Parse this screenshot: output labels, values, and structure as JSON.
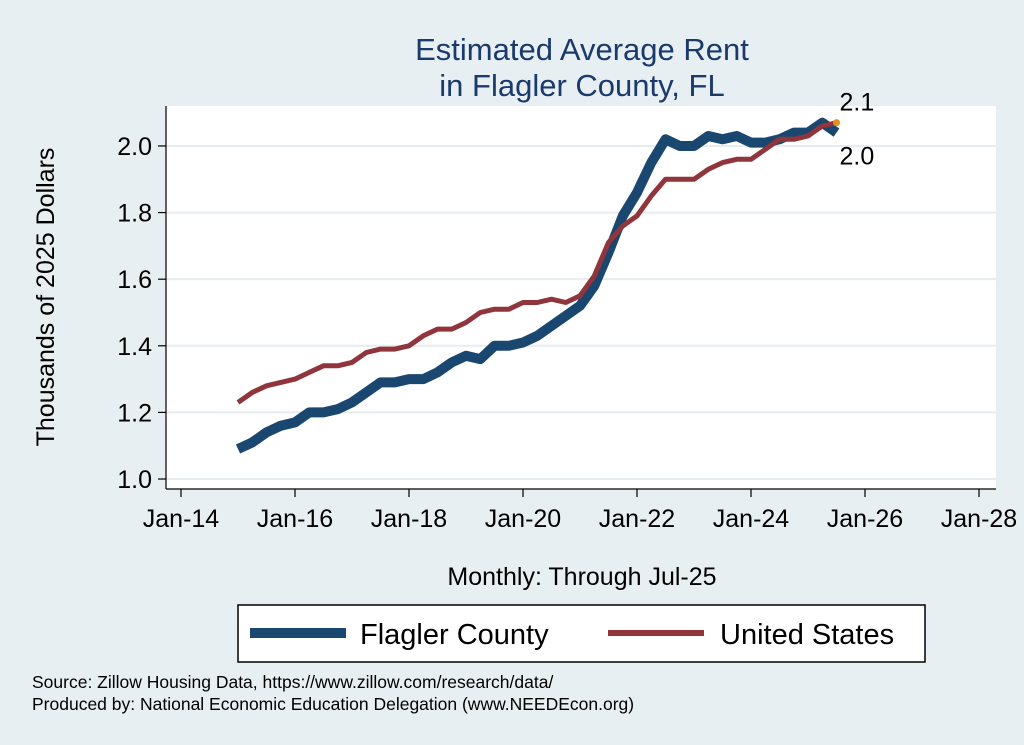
{
  "chart_data": {
    "type": "line",
    "title": "Estimated Average Rent",
    "subtitle": "in Flagler County, FL",
    "xlabel": "Monthly: Through Jul-25",
    "ylabel": "Thousands of 2025 Dollars",
    "xlim": [
      "2014-01",
      "2028-01"
    ],
    "ylim": [
      0.97,
      2.12
    ],
    "x_ticks": [
      "Jan-14",
      "Jan-16",
      "Jan-18",
      "Jan-20",
      "Jan-22",
      "Jan-24",
      "Jan-26",
      "Jan-28"
    ],
    "y_ticks": [
      "1.0",
      "1.2",
      "1.4",
      "1.6",
      "1.8",
      "2.0"
    ],
    "grid": true,
    "legend_position": "bottom",
    "series": [
      {
        "name": "Flagler County",
        "color": "#1a476f",
        "end_label": "2.0",
        "points": [
          [
            "2015-01",
            1.09
          ],
          [
            "2015-04",
            1.11
          ],
          [
            "2015-07",
            1.14
          ],
          [
            "2015-10",
            1.16
          ],
          [
            "2016-01",
            1.17
          ],
          [
            "2016-04",
            1.2
          ],
          [
            "2016-07",
            1.2
          ],
          [
            "2016-10",
            1.21
          ],
          [
            "2017-01",
            1.23
          ],
          [
            "2017-04",
            1.26
          ],
          [
            "2017-07",
            1.29
          ],
          [
            "2017-10",
            1.29
          ],
          [
            "2018-01",
            1.3
          ],
          [
            "2018-04",
            1.3
          ],
          [
            "2018-07",
            1.32
          ],
          [
            "2018-10",
            1.35
          ],
          [
            "2019-01",
            1.37
          ],
          [
            "2019-04",
            1.36
          ],
          [
            "2019-07",
            1.4
          ],
          [
            "2019-10",
            1.4
          ],
          [
            "2020-01",
            1.41
          ],
          [
            "2020-04",
            1.43
          ],
          [
            "2020-07",
            1.46
          ],
          [
            "2020-10",
            1.49
          ],
          [
            "2021-01",
            1.52
          ],
          [
            "2021-04",
            1.58
          ],
          [
            "2021-07",
            1.68
          ],
          [
            "2021-10",
            1.79
          ],
          [
            "2022-01",
            1.86
          ],
          [
            "2022-04",
            1.95
          ],
          [
            "2022-07",
            2.02
          ],
          [
            "2022-10",
            2.0
          ],
          [
            "2023-01",
            2.0
          ],
          [
            "2023-04",
            2.03
          ],
          [
            "2023-07",
            2.02
          ],
          [
            "2023-10",
            2.03
          ],
          [
            "2024-01",
            2.01
          ],
          [
            "2024-04",
            2.01
          ],
          [
            "2024-07",
            2.02
          ],
          [
            "2024-10",
            2.04
          ],
          [
            "2025-01",
            2.04
          ],
          [
            "2025-04",
            2.07
          ],
          [
            "2025-07",
            2.04
          ]
        ]
      },
      {
        "name": "United States",
        "color": "#90353b",
        "end_label": "2.1",
        "points": [
          [
            "2015-01",
            1.23
          ],
          [
            "2015-04",
            1.26
          ],
          [
            "2015-07",
            1.28
          ],
          [
            "2015-10",
            1.29
          ],
          [
            "2016-01",
            1.3
          ],
          [
            "2016-04",
            1.32
          ],
          [
            "2016-07",
            1.34
          ],
          [
            "2016-10",
            1.34
          ],
          [
            "2017-01",
            1.35
          ],
          [
            "2017-04",
            1.38
          ],
          [
            "2017-07",
            1.39
          ],
          [
            "2017-10",
            1.39
          ],
          [
            "2018-01",
            1.4
          ],
          [
            "2018-04",
            1.43
          ],
          [
            "2018-07",
            1.45
          ],
          [
            "2018-10",
            1.45
          ],
          [
            "2019-01",
            1.47
          ],
          [
            "2019-04",
            1.5
          ],
          [
            "2019-07",
            1.51
          ],
          [
            "2019-10",
            1.51
          ],
          [
            "2020-01",
            1.53
          ],
          [
            "2020-04",
            1.53
          ],
          [
            "2020-07",
            1.54
          ],
          [
            "2020-10",
            1.53
          ],
          [
            "2021-01",
            1.55
          ],
          [
            "2021-04",
            1.61
          ],
          [
            "2021-07",
            1.71
          ],
          [
            "2021-10",
            1.76
          ],
          [
            "2022-01",
            1.79
          ],
          [
            "2022-04",
            1.85
          ],
          [
            "2022-07",
            1.9
          ],
          [
            "2022-10",
            1.9
          ],
          [
            "2023-01",
            1.9
          ],
          [
            "2023-04",
            1.93
          ],
          [
            "2023-07",
            1.95
          ],
          [
            "2023-10",
            1.96
          ],
          [
            "2024-01",
            1.96
          ],
          [
            "2024-04",
            1.99
          ],
          [
            "2024-07",
            2.02
          ],
          [
            "2024-10",
            2.02
          ],
          [
            "2025-01",
            2.03
          ],
          [
            "2025-04",
            2.06
          ],
          [
            "2025-07",
            2.07
          ]
        ]
      }
    ]
  },
  "source": {
    "line1": "Source: Zillow Housing Data, https://www.zillow.com/research/data/",
    "line2": "Produced by: National Economic Education Delegation (www.NEEDEcon.org)"
  }
}
